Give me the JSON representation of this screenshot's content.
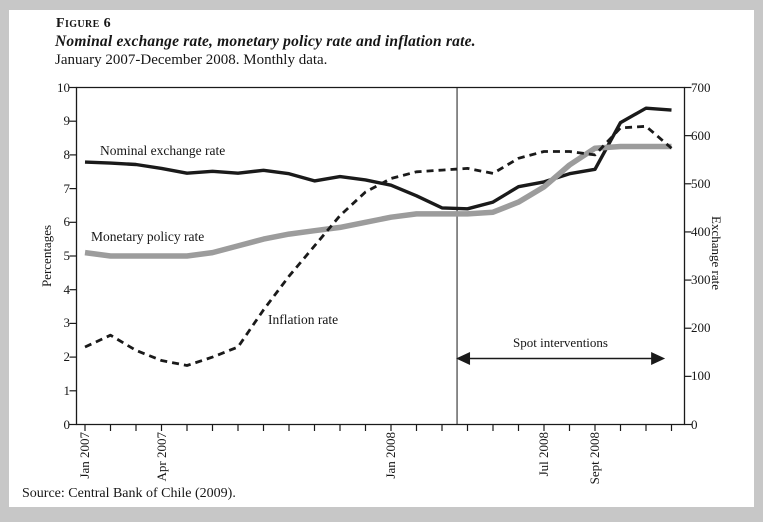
{
  "figure": {
    "label": "Figure 6",
    "title": "Nominal exchange rate, monetary policy rate and inflation rate.",
    "subtitle": "January 2007-December 2008. Monthly data.",
    "source": "Source: Central Bank of Chile (2009)."
  },
  "chart_data": {
    "type": "line",
    "x": [
      "Jan 2007",
      "Feb 2007",
      "Mar 2007",
      "Apr 2007",
      "May 2007",
      "Jun 2007",
      "Jul 2007",
      "Aug 2007",
      "Sep 2007",
      "Oct 2007",
      "Nov 2007",
      "Dec 2007",
      "Jan 2008",
      "Feb 2008",
      "Mar 2008",
      "Apr 2008",
      "May 2008",
      "Jun 2008",
      "Jul 2008",
      "Aug 2008",
      "Sep 2008",
      "Oct 2008",
      "Nov 2008",
      "Dec 2008"
    ],
    "x_tick_labels": [
      {
        "label": "Jan 2007",
        "month": 0
      },
      {
        "label": "Apr 2007",
        "month": 3
      },
      {
        "label": "Jan 2008",
        "month": 12
      },
      {
        "label": "Jul 2008",
        "month": 18
      },
      {
        "label": "Sept 2008",
        "month": 20
      }
    ],
    "left_axis": {
      "label": "Percentages",
      "min": 0,
      "max": 10,
      "ticks": [
        0,
        1,
        2,
        3,
        4,
        5,
        6,
        7,
        8,
        9,
        10
      ]
    },
    "right_axis": {
      "label": "Exchange rate",
      "min": 0,
      "max": 700,
      "ticks": [
        0,
        100,
        200,
        300,
        400,
        500,
        600,
        700
      ]
    },
    "grid": false,
    "legend_position": "inline-labels",
    "series": [
      {
        "name": "Nominal exchange rate",
        "axis": "right",
        "style": "solid-black",
        "values": [
          545,
          543,
          540,
          532,
          522,
          526,
          522,
          528,
          521,
          506,
          515,
          508,
          497,
          475,
          450,
          448,
          462,
          494,
          504,
          521,
          530,
          627,
          657,
          653
        ]
      },
      {
        "name": "Monetary policy rate",
        "axis": "left",
        "style": "solid-gray-thick",
        "values": [
          5.1,
          5.0,
          5.0,
          5.0,
          5.0,
          5.1,
          5.3,
          5.5,
          5.65,
          5.75,
          5.85,
          6.0,
          6.15,
          6.25,
          6.25,
          6.25,
          6.3,
          6.6,
          7.05,
          7.7,
          8.2,
          8.25,
          8.25,
          8.25
        ]
      },
      {
        "name": "Inflation rate",
        "axis": "left",
        "style": "dashed-black",
        "values": [
          2.3,
          2.65,
          2.2,
          1.9,
          1.75,
          2.0,
          2.3,
          3.4,
          4.4,
          5.3,
          6.2,
          6.9,
          7.3,
          7.5,
          7.55,
          7.6,
          7.45,
          7.9,
          8.1,
          8.1,
          8.0,
          8.8,
          8.85,
          8.2
        ]
      }
    ],
    "annotations": {
      "vline_month": 14.59,
      "arrow": {
        "label": "Spot interventions",
        "from_month": 14.55,
        "to_month": 22.75
      }
    },
    "colors": {
      "ink": "#1a1a1a",
      "gray_line": "#9c9c9c",
      "page": "#ffffff",
      "frame": "#c7c7c7"
    }
  }
}
